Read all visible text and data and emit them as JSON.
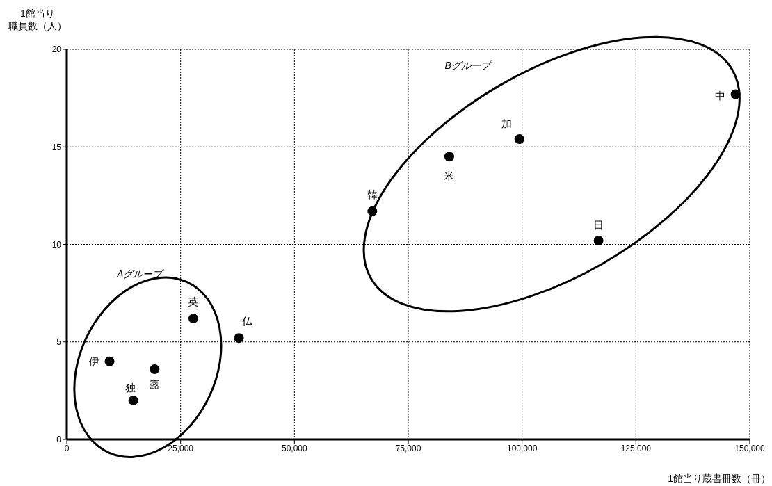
{
  "chart_data": {
    "type": "scatter",
    "xlabel": "1館当り蔵書冊数（冊）",
    "ylabel": "1館当り職員数（人）",
    "xlim": [
      0,
      150000
    ],
    "xticks": [
      {
        "value": 0,
        "label": "0"
      },
      {
        "value": 25000,
        "label": "25,000"
      },
      {
        "value": 50000,
        "label": "50,000"
      },
      {
        "value": 75000,
        "label": "75,000"
      },
      {
        "value": 100000,
        "label": "100,000"
      },
      {
        "value": 125000,
        "label": "125,000"
      },
      {
        "value": 150000,
        "label": "150,000"
      }
    ],
    "ylim": [
      0,
      20
    ],
    "yticks": [
      0,
      5,
      10,
      15,
      20
    ],
    "grid": true,
    "legend": false,
    "marker": "circle",
    "series": [
      {
        "name": "伊",
        "color": "#000000",
        "x": [
          9400
        ],
        "values": [
          4.0
        ]
      },
      {
        "name": "独",
        "color": "#000000",
        "x": [
          14600
        ],
        "values": [
          2.0
        ]
      },
      {
        "name": "露",
        "color": "#000000",
        "x": [
          19300
        ],
        "values": [
          3.6
        ]
      },
      {
        "name": "英",
        "color": "#000000",
        "x": [
          27800
        ],
        "values": [
          6.2
        ]
      },
      {
        "name": "仏",
        "color": "#000000",
        "x": [
          37800
        ],
        "values": [
          5.2
        ]
      },
      {
        "name": "韓",
        "color": "#000000",
        "x": [
          67100
        ],
        "values": [
          11.7
        ]
      },
      {
        "name": "米",
        "color": "#000000",
        "x": [
          84000
        ],
        "values": [
          14.5
        ]
      },
      {
        "name": "加",
        "color": "#000000",
        "x": [
          99400
        ],
        "values": [
          15.4
        ]
      },
      {
        "name": "日",
        "color": "#000000",
        "x": [
          116800
        ],
        "values": [
          10.2
        ]
      },
      {
        "name": "中",
        "color": "#000000",
        "x": [
          146900
        ],
        "values": [
          17.7
        ]
      }
    ],
    "annotations": [
      "Aグループ",
      "Bグループ"
    ]
  }
}
